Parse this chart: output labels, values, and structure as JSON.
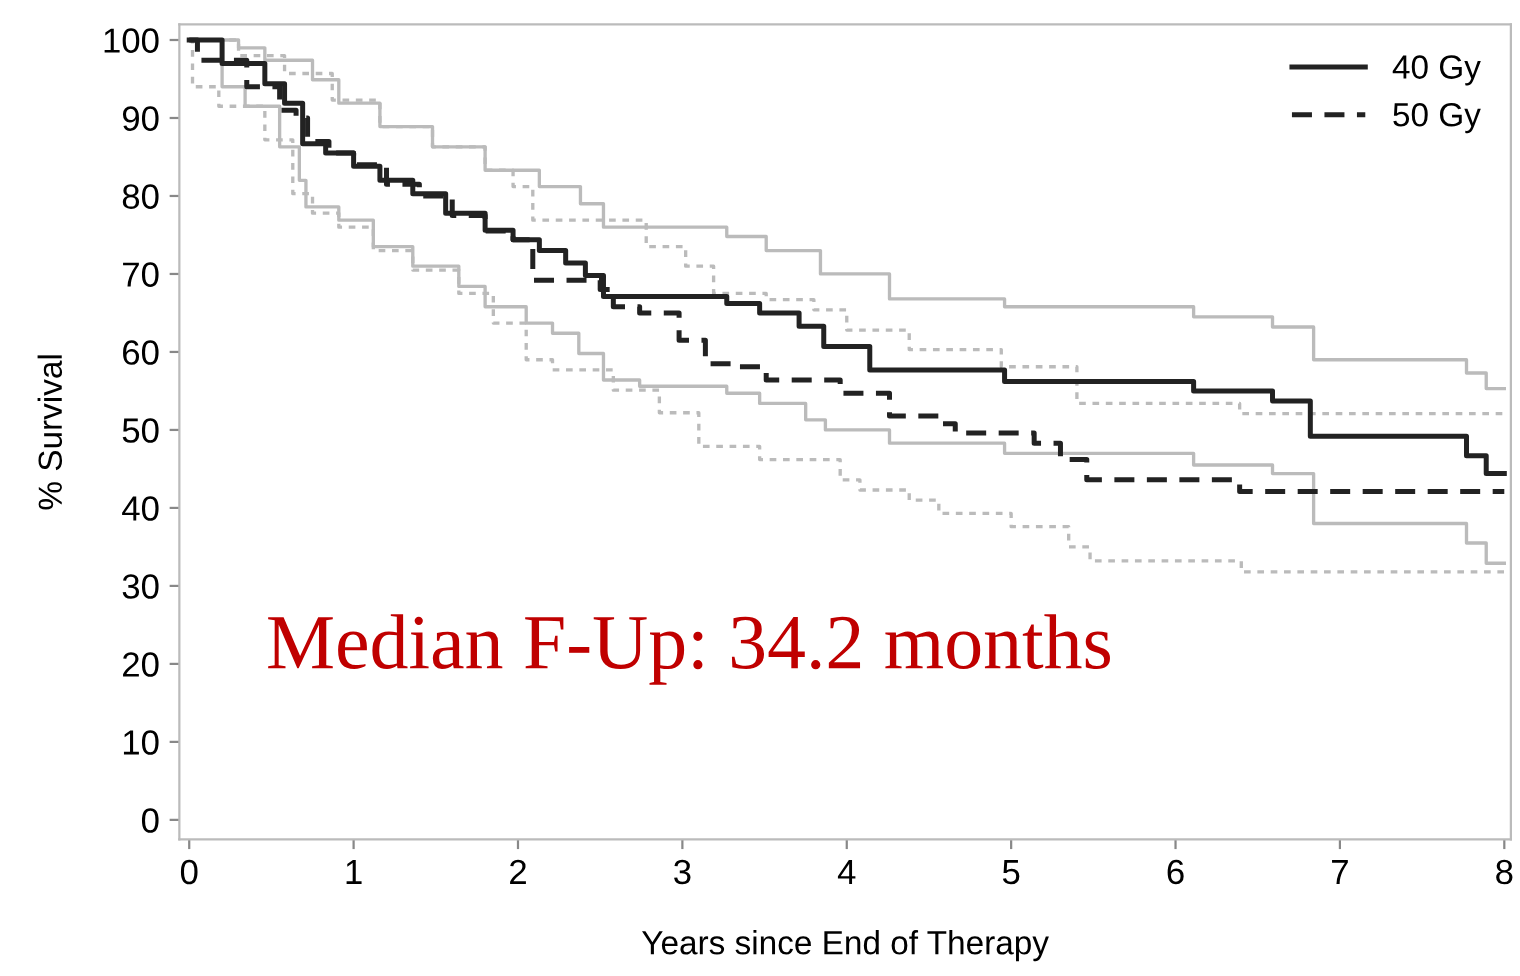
{
  "chart_data": {
    "type": "step",
    "xlabel": "Years since End of Therapy",
    "ylabel": "% Survival",
    "annotations": [
      "Median F-Up: 34.2 months"
    ],
    "series": [
      {
        "x": [
          0,
          0.3,
          0.46,
          0.75,
          0.91,
          1.16,
          1.48,
          1.8,
          2.13,
          2.38,
          2.52,
          3.27,
          3.51,
          3.84,
          4.26,
          4.96,
          6.11,
          6.59,
          6.84,
          7.77,
          7.89,
          8.0
        ],
        "values": [
          100,
          99,
          97.4,
          94.9,
          91.9,
          88.9,
          86.3,
          83.3,
          81.2,
          79,
          76,
          74.8,
          73,
          70,
          66.8,
          65.8,
          64.5,
          63.2,
          59,
          57.3,
          55.3,
          55.3
        ],
        "color": "#bbbbbb",
        "line_style": "solid"
      },
      {
        "x": [
          0,
          0.2,
          0.34,
          0.55,
          0.67,
          0.71,
          0.91,
          1.12,
          1.36,
          1.64,
          1.8,
          2.05,
          2.21,
          2.37,
          2.52,
          2.74,
          3.27,
          3.47,
          3.75,
          3.87,
          4.26,
          4.96,
          6.11,
          6.59,
          6.84,
          7.77,
          7.89,
          8.0
        ],
        "values": [
          100,
          94,
          91.5,
          86.3,
          82,
          78.6,
          76.9,
          73.5,
          71,
          68.4,
          65.8,
          63.7,
          62.4,
          59.8,
          56.4,
          55.6,
          54.7,
          53.4,
          51.3,
          50,
          48.3,
          47,
          45.5,
          44.4,
          38,
          35.5,
          32.9,
          32.9
        ],
        "color": "#bbbbbb",
        "line_style": "solid"
      },
      {
        "x": [
          0,
          0.3,
          0.58,
          0.87,
          1.16,
          1.48,
          1.8,
          1.97,
          2.09,
          2.78,
          3.02,
          3.19,
          3.51,
          3.8,
          4.0,
          4.38,
          4.94,
          5.4,
          6.39,
          8.0
        ],
        "values": [
          100,
          98,
          95.7,
          92.3,
          88.9,
          86.3,
          83.3,
          81.2,
          76.9,
          73.5,
          71,
          67.5,
          66.7,
          65.4,
          62.8,
          60.3,
          58.1,
          53.4,
          52.1,
          52.1
        ],
        "color": "#bbbbbb",
        "line_style": "dotted"
      },
      {
        "x": [
          0,
          0.02,
          0.18,
          0.46,
          0.63,
          0.75,
          0.91,
          1.12,
          1.36,
          1.64,
          1.85,
          2.05,
          2.21,
          2.58,
          2.86,
          3.1,
          3.47,
          3.96,
          4.08,
          4.38,
          4.56,
          5.0,
          5.35,
          5.48,
          6.4,
          8.0
        ],
        "values": [
          100,
          94,
          91.5,
          87.2,
          80.3,
          77.8,
          76,
          73,
          70.5,
          67.5,
          63.7,
          59,
          57.7,
          55.1,
          52.2,
          47.9,
          46.2,
          43.6,
          42.3,
          41,
          39.3,
          37.6,
          35,
          33.2,
          31.8,
          31.8
        ],
        "color": "#bbbbbb",
        "line_style": "dotted"
      },
      {
        "name": "40 Gy",
        "x": [
          0,
          0.2,
          0.46,
          0.58,
          0.69,
          0.83,
          1.0,
          1.16,
          1.36,
          1.56,
          1.8,
          1.97,
          2.13,
          2.29,
          2.41,
          2.52,
          3.27,
          3.47,
          3.71,
          3.86,
          4.14,
          4.96,
          6.11,
          6.59,
          6.82,
          7.77,
          7.89,
          8.0
        ],
        "values": [
          100,
          97,
          94.4,
          91.9,
          86.7,
          85.5,
          83.8,
          82,
          80.3,
          77.8,
          75.6,
          74.4,
          73,
          71.4,
          69.8,
          67.1,
          66.2,
          65,
          63.3,
          60.7,
          57.7,
          56.2,
          55,
          53.7,
          49.2,
          46.7,
          44.4,
          44.4
        ],
        "color": "#222222",
        "line_style": "solid"
      },
      {
        "name": "50 Gy",
        "x": [
          0,
          0.05,
          0.35,
          0.55,
          0.65,
          0.72,
          0.85,
          1.0,
          1.2,
          1.4,
          1.6,
          1.8,
          1.97,
          2.09,
          2.5,
          2.58,
          2.74,
          2.98,
          3.14,
          3.35,
          3.51,
          3.96,
          4.26,
          4.57,
          4.66,
          5.14,
          5.3,
          5.46,
          6.39,
          8.0
        ],
        "values": [
          100,
          97.4,
          94,
          91,
          90,
          87,
          85.5,
          84,
          81.5,
          80,
          77.5,
          75.5,
          74.4,
          69.2,
          68,
          65.8,
          65,
          61.5,
          58.5,
          58.1,
          56.4,
          54.7,
          51.8,
          50.8,
          49.6,
          48.3,
          46.2,
          43.6,
          42.1,
          42.1
        ],
        "color": "#222222",
        "line_style": "dashed"
      }
    ],
    "xlim": [
      -0.06,
      8.04
    ],
    "ylim": [
      -2.5,
      102
    ],
    "xticks": [
      0,
      1,
      2,
      3,
      4,
      5,
      6,
      7,
      8
    ],
    "yticks": [
      0,
      10,
      20,
      30,
      40,
      50,
      60,
      70,
      80,
      90,
      100
    ],
    "grid": false,
    "legend": "top right",
    "marker": "none"
  }
}
